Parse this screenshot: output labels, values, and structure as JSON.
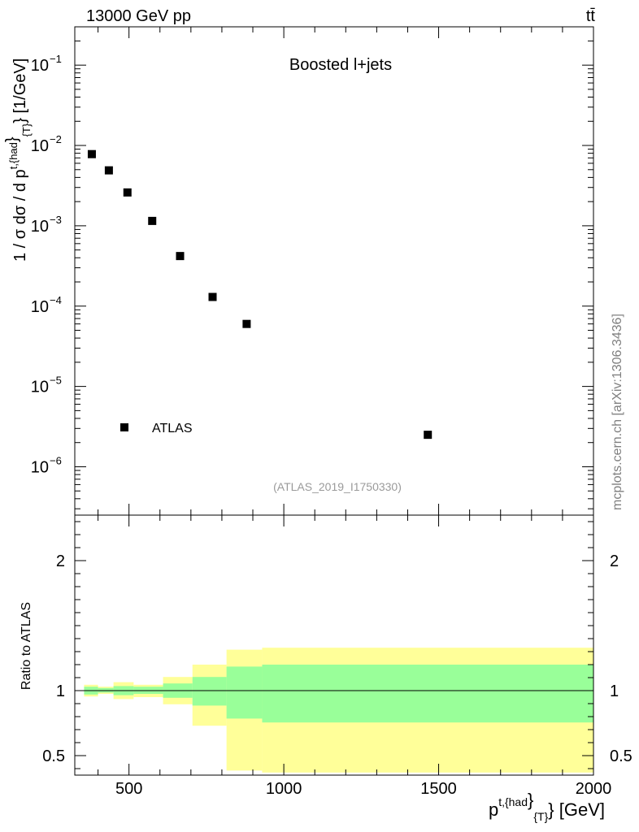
{
  "header": {
    "energy_label": "13000 GeV pp",
    "process_label": "tt̄"
  },
  "chart_data": [
    {
      "type": "scatter",
      "panel": "main",
      "title": "Boosted l+jets",
      "ylabel_main": "1 / σ dσ / d p",
      "ylabel_sup": "t,{had",
      "ylabel_sub": "{T}",
      "ylabel_unit": "[1/GeV]",
      "yscale": "log",
      "ylim": [
        2.5e-07,
        0.3
      ],
      "xlim": [
        325,
        2000
      ],
      "x_ticks": [
        500,
        1000,
        1500,
        2000
      ],
      "y_ticks": [
        {
          "value": 1e-06,
          "label_base": "10",
          "label_exp": "−6"
        },
        {
          "value": 1e-05,
          "label_base": "10",
          "label_exp": "−5"
        },
        {
          "value": 0.0001,
          "label_base": "10",
          "label_exp": "−4"
        },
        {
          "value": 0.001,
          "label_base": "10",
          "label_exp": "−3"
        },
        {
          "value": 0.01,
          "label_base": "10",
          "label_exp": "−2"
        },
        {
          "value": 0.1,
          "label_base": "10",
          "label_exp": "−1"
        }
      ],
      "series": [
        {
          "name": "ATLAS",
          "x": [
            380,
            435,
            495,
            575,
            665,
            770,
            880,
            1465
          ],
          "y": [
            0.0078,
            0.0049,
            0.0026,
            0.00115,
            0.00042,
            0.00013,
            6e-05,
            2.5e-06
          ]
        }
      ],
      "legend": [
        {
          "label": "ATLAS",
          "position": "bottom-left"
        }
      ],
      "watermark": "(ATLAS_2019_I1750330)"
    },
    {
      "type": "area",
      "panel": "ratio",
      "ylabel": "Ratio to ATLAS",
      "xlabel_main": "p",
      "xlabel_sup": "t,{had",
      "xlabel_sub": "{T}",
      "xlabel_unit": "} [GeV]",
      "xlim": [
        325,
        2000
      ],
      "ylim": [
        0.35,
        2.35
      ],
      "x_ticks": [
        500,
        1000,
        1500,
        2000
      ],
      "y_ticks": [
        0.5,
        1,
        2
      ],
      "reference_line": 1,
      "bins": [
        {
          "x0": 355,
          "x1": 400,
          "inner": [
            0.97,
            1.03
          ],
          "outer": [
            0.955,
            1.045
          ]
        },
        {
          "x0": 400,
          "x1": 450,
          "inner": [
            0.985,
            1.02
          ],
          "outer": [
            0.975,
            1.03
          ]
        },
        {
          "x0": 450,
          "x1": 515,
          "inner": [
            0.965,
            1.035
          ],
          "outer": [
            0.935,
            1.065
          ]
        },
        {
          "x0": 515,
          "x1": 610,
          "inner": [
            0.975,
            1.03
          ],
          "outer": [
            0.95,
            1.045
          ]
        },
        {
          "x0": 610,
          "x1": 705,
          "inner": [
            0.945,
            1.055
          ],
          "outer": [
            0.895,
            1.105
          ]
        },
        {
          "x0": 705,
          "x1": 815,
          "inner": [
            0.885,
            1.105
          ],
          "outer": [
            0.73,
            1.2
          ]
        },
        {
          "x0": 815,
          "x1": 930,
          "inner": [
            0.785,
            1.185
          ],
          "outer": [
            0.385,
            1.315
          ]
        },
        {
          "x0": 930,
          "x1": 2000,
          "inner": [
            0.755,
            1.2
          ],
          "outer": [
            0.37,
            1.33
          ]
        }
      ],
      "colors": {
        "inner": "#99ff99",
        "outer": "#ffff99"
      }
    }
  ],
  "side_label": "mcplots.cern.ch [arXiv:1306.3436]"
}
